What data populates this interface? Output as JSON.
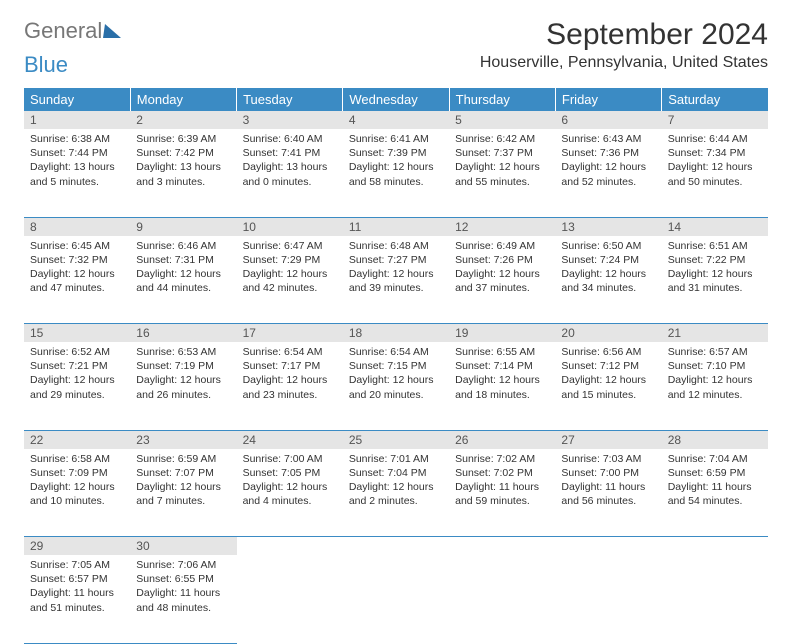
{
  "brand": {
    "word1": "General",
    "word2": "Blue"
  },
  "title": "September 2024",
  "location": "Houserville, Pennsylvania, United States",
  "colors": {
    "header_bg": "#3b8bc4",
    "header_text": "#ffffff",
    "daynum_bg": "#e5e5e5",
    "rule": "#3b8bc4",
    "body_text": "#333333",
    "brand_gray": "#777777",
    "brand_blue": "#3b8bc4"
  },
  "weekdays": [
    "Sunday",
    "Monday",
    "Tuesday",
    "Wednesday",
    "Thursday",
    "Friday",
    "Saturday"
  ],
  "weeks": [
    [
      {
        "n": "1",
        "sunrise": "6:38 AM",
        "sunset": "7:44 PM",
        "daylight": "13 hours and 5 minutes."
      },
      {
        "n": "2",
        "sunrise": "6:39 AM",
        "sunset": "7:42 PM",
        "daylight": "13 hours and 3 minutes."
      },
      {
        "n": "3",
        "sunrise": "6:40 AM",
        "sunset": "7:41 PM",
        "daylight": "13 hours and 0 minutes."
      },
      {
        "n": "4",
        "sunrise": "6:41 AM",
        "sunset": "7:39 PM",
        "daylight": "12 hours and 58 minutes."
      },
      {
        "n": "5",
        "sunrise": "6:42 AM",
        "sunset": "7:37 PM",
        "daylight": "12 hours and 55 minutes."
      },
      {
        "n": "6",
        "sunrise": "6:43 AM",
        "sunset": "7:36 PM",
        "daylight": "12 hours and 52 minutes."
      },
      {
        "n": "7",
        "sunrise": "6:44 AM",
        "sunset": "7:34 PM",
        "daylight": "12 hours and 50 minutes."
      }
    ],
    [
      {
        "n": "8",
        "sunrise": "6:45 AM",
        "sunset": "7:32 PM",
        "daylight": "12 hours and 47 minutes."
      },
      {
        "n": "9",
        "sunrise": "6:46 AM",
        "sunset": "7:31 PM",
        "daylight": "12 hours and 44 minutes."
      },
      {
        "n": "10",
        "sunrise": "6:47 AM",
        "sunset": "7:29 PM",
        "daylight": "12 hours and 42 minutes."
      },
      {
        "n": "11",
        "sunrise": "6:48 AM",
        "sunset": "7:27 PM",
        "daylight": "12 hours and 39 minutes."
      },
      {
        "n": "12",
        "sunrise": "6:49 AM",
        "sunset": "7:26 PM",
        "daylight": "12 hours and 37 minutes."
      },
      {
        "n": "13",
        "sunrise": "6:50 AM",
        "sunset": "7:24 PM",
        "daylight": "12 hours and 34 minutes."
      },
      {
        "n": "14",
        "sunrise": "6:51 AM",
        "sunset": "7:22 PM",
        "daylight": "12 hours and 31 minutes."
      }
    ],
    [
      {
        "n": "15",
        "sunrise": "6:52 AM",
        "sunset": "7:21 PM",
        "daylight": "12 hours and 29 minutes."
      },
      {
        "n": "16",
        "sunrise": "6:53 AM",
        "sunset": "7:19 PM",
        "daylight": "12 hours and 26 minutes."
      },
      {
        "n": "17",
        "sunrise": "6:54 AM",
        "sunset": "7:17 PM",
        "daylight": "12 hours and 23 minutes."
      },
      {
        "n": "18",
        "sunrise": "6:54 AM",
        "sunset": "7:15 PM",
        "daylight": "12 hours and 20 minutes."
      },
      {
        "n": "19",
        "sunrise": "6:55 AM",
        "sunset": "7:14 PM",
        "daylight": "12 hours and 18 minutes."
      },
      {
        "n": "20",
        "sunrise": "6:56 AM",
        "sunset": "7:12 PM",
        "daylight": "12 hours and 15 minutes."
      },
      {
        "n": "21",
        "sunrise": "6:57 AM",
        "sunset": "7:10 PM",
        "daylight": "12 hours and 12 minutes."
      }
    ],
    [
      {
        "n": "22",
        "sunrise": "6:58 AM",
        "sunset": "7:09 PM",
        "daylight": "12 hours and 10 minutes."
      },
      {
        "n": "23",
        "sunrise": "6:59 AM",
        "sunset": "7:07 PM",
        "daylight": "12 hours and 7 minutes."
      },
      {
        "n": "24",
        "sunrise": "7:00 AM",
        "sunset": "7:05 PM",
        "daylight": "12 hours and 4 minutes."
      },
      {
        "n": "25",
        "sunrise": "7:01 AM",
        "sunset": "7:04 PM",
        "daylight": "12 hours and 2 minutes."
      },
      {
        "n": "26",
        "sunrise": "7:02 AM",
        "sunset": "7:02 PM",
        "daylight": "11 hours and 59 minutes."
      },
      {
        "n": "27",
        "sunrise": "7:03 AM",
        "sunset": "7:00 PM",
        "daylight": "11 hours and 56 minutes."
      },
      {
        "n": "28",
        "sunrise": "7:04 AM",
        "sunset": "6:59 PM",
        "daylight": "11 hours and 54 minutes."
      }
    ],
    [
      {
        "n": "29",
        "sunrise": "7:05 AM",
        "sunset": "6:57 PM",
        "daylight": "11 hours and 51 minutes."
      },
      {
        "n": "30",
        "sunrise": "7:06 AM",
        "sunset": "6:55 PM",
        "daylight": "11 hours and 48 minutes."
      },
      null,
      null,
      null,
      null,
      null
    ]
  ],
  "labels": {
    "sunrise": "Sunrise:",
    "sunset": "Sunset:",
    "daylight": "Daylight:"
  }
}
